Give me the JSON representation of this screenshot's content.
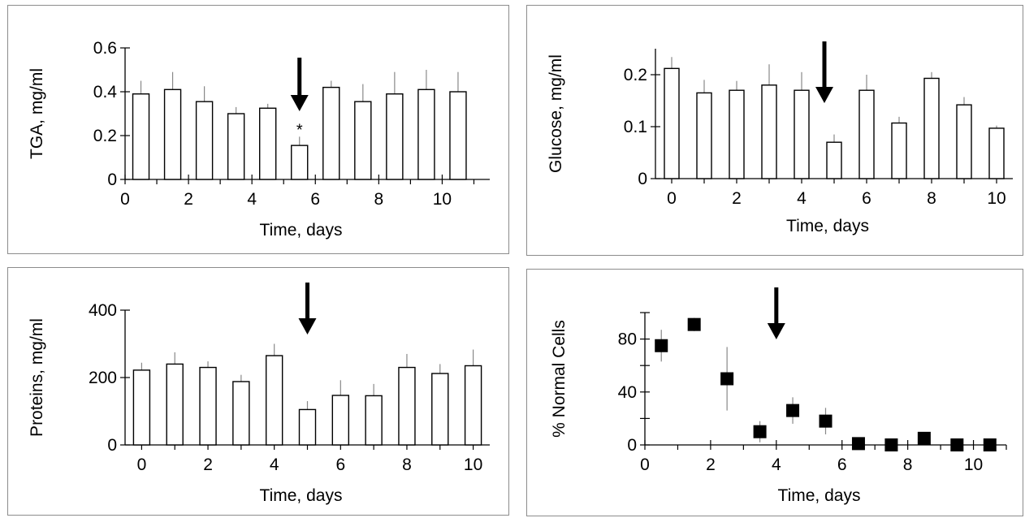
{
  "chart_data": [
    {
      "type": "bar",
      "ylabel": "TGA, mg/ml",
      "xlabel": "Time, days",
      "x": [
        0.5,
        1.5,
        2.5,
        3.5,
        4.5,
        5.5,
        6.5,
        7.5,
        8.5,
        9.5,
        10.5
      ],
      "values": [
        0.39,
        0.41,
        0.355,
        0.3,
        0.325,
        0.155,
        0.42,
        0.355,
        0.39,
        0.41,
        0.4
      ],
      "errors": [
        0.06,
        0.08,
        0.07,
        0.03,
        0.02,
        0.04,
        0.03,
        0.08,
        0.1,
        0.09,
        0.09
      ],
      "xlim": [
        0,
        11.5
      ],
      "ylim": [
        0,
        0.6
      ],
      "xticks": [
        0,
        2,
        4,
        6,
        8,
        10
      ],
      "yticks": [
        0,
        0.2,
        0.4,
        0.6
      ],
      "xticklabels": [
        "0",
        "2",
        "4",
        "6",
        "8",
        "10"
      ],
      "yticklabels": [
        "0",
        "0.2",
        "0.4",
        "0.6"
      ],
      "arrow_x": 5.5,
      "annotations": [
        {
          "text": "*",
          "x": 5.5
        }
      ]
    },
    {
      "type": "bar",
      "ylabel": "Glucose, mg/ml",
      "xlabel": "Time, days",
      "x": [
        0,
        1,
        2,
        3,
        4,
        5,
        6,
        7,
        8,
        9,
        10
      ],
      "values": [
        0.212,
        0.165,
        0.17,
        0.18,
        0.17,
        0.07,
        0.17,
        0.107,
        0.193,
        0.142,
        0.097
      ],
      "errors": [
        0.022,
        0.025,
        0.018,
        0.04,
        0.035,
        0.015,
        0.03,
        0.012,
        0.012,
        0.015,
        0.005
      ],
      "xlim": [
        -0.5,
        10.5
      ],
      "ylim": [
        0,
        0.25
      ],
      "xticks": [
        0,
        2,
        4,
        6,
        8,
        10
      ],
      "yticks": [
        0,
        0.1,
        0.2
      ],
      "xticklabels": [
        "0",
        "2",
        "4",
        "6",
        "8",
        "10"
      ],
      "yticklabels": [
        "0",
        "0.1",
        "0.2"
      ],
      "arrow_x": 4.7
    },
    {
      "type": "bar",
      "ylabel": "Proteins, mg/ml",
      "xlabel": "Time, days",
      "x": [
        0,
        1,
        2,
        3,
        4,
        5,
        6,
        7,
        8,
        9,
        10
      ],
      "values": [
        222,
        240,
        230,
        188,
        265,
        105,
        147,
        146,
        230,
        212,
        235
      ],
      "errors": [
        22,
        35,
        18,
        20,
        35,
        25,
        45,
        35,
        40,
        28,
        48
      ],
      "xlim": [
        -0.5,
        10.5
      ],
      "ylim": [
        0,
        400
      ],
      "xticks": [
        0,
        2,
        4,
        6,
        8,
        10
      ],
      "yticks": [
        0,
        200,
        400
      ],
      "xticklabels": [
        "0",
        "2",
        "4",
        "6",
        "8",
        "10"
      ],
      "yticklabels": [
        "0",
        "200",
        "400"
      ],
      "arrow_x": 5
    },
    {
      "type": "scatter",
      "ylabel": "% Normal Cells",
      "xlabel": "Time, days",
      "x": [
        0.5,
        1.5,
        2.5,
        3.5,
        4.5,
        5.5,
        6.5,
        7.5,
        8.5,
        9.5,
        10.5
      ],
      "values": [
        75,
        91,
        50,
        10,
        26,
        18,
        1,
        0,
        5,
        0,
        0
      ],
      "errors": [
        12,
        5,
        24,
        8,
        10,
        10,
        1,
        1,
        2,
        1,
        1
      ],
      "xlim": [
        0,
        11
      ],
      "ylim": [
        0,
        100
      ],
      "xticks": [
        0,
        2,
        4,
        6,
        8,
        10
      ],
      "yticks": [
        0,
        40,
        80
      ],
      "yminorticks": [
        20,
        60,
        100
      ],
      "xticklabels": [
        "0",
        "2",
        "4",
        "6",
        "8",
        "10"
      ],
      "yticklabels": [
        "0",
        "40",
        "80"
      ],
      "arrow_x": 4.0
    }
  ]
}
